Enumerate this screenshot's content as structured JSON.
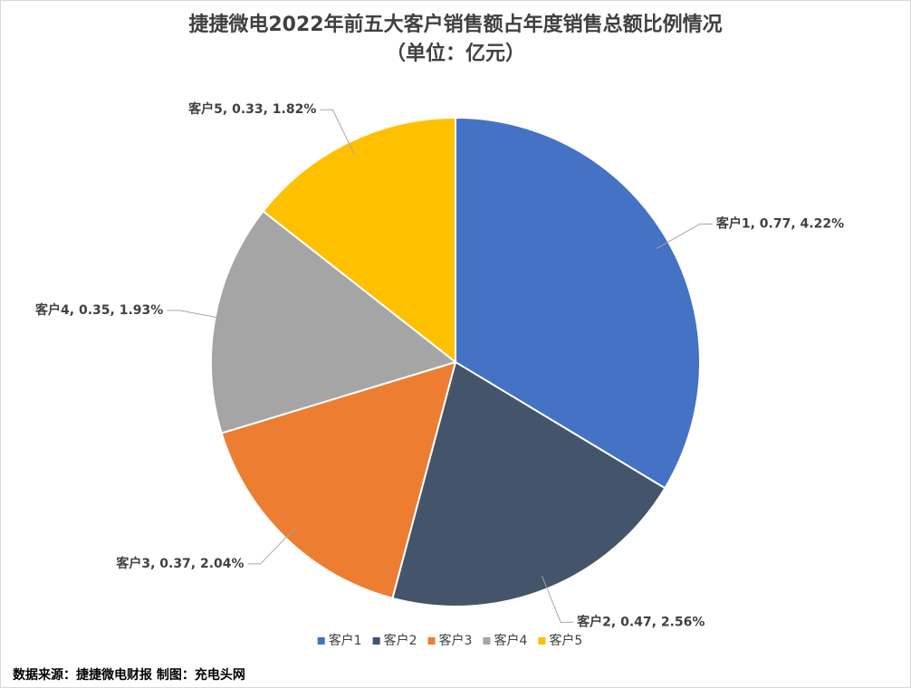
{
  "chart_data": {
    "type": "pie",
    "title": "捷捷微电2022年前五大客户销售额占年度销售总额比例情况",
    "subtitle": "（单位：亿元）",
    "categories": [
      "客户1",
      "客户2",
      "客户3",
      "客户4",
      "客户5"
    ],
    "values": [
      0.77,
      0.47,
      0.37,
      0.35,
      0.33
    ],
    "value_labels": [
      "客户1, 0.77, 4.22%",
      "客户2, 0.47, 2.56%",
      "客户3, 0.37, 2.04%",
      "客户4, 0.35, 1.93%",
      "客户5, 0.33, 1.82%"
    ],
    "colors": [
      "#4472c4",
      "#44546a",
      "#ed7d31",
      "#a5a5a5",
      "#ffc000"
    ],
    "legend": "bottom",
    "note": "数据来源：捷捷微电财报 制图：充电头网"
  }
}
